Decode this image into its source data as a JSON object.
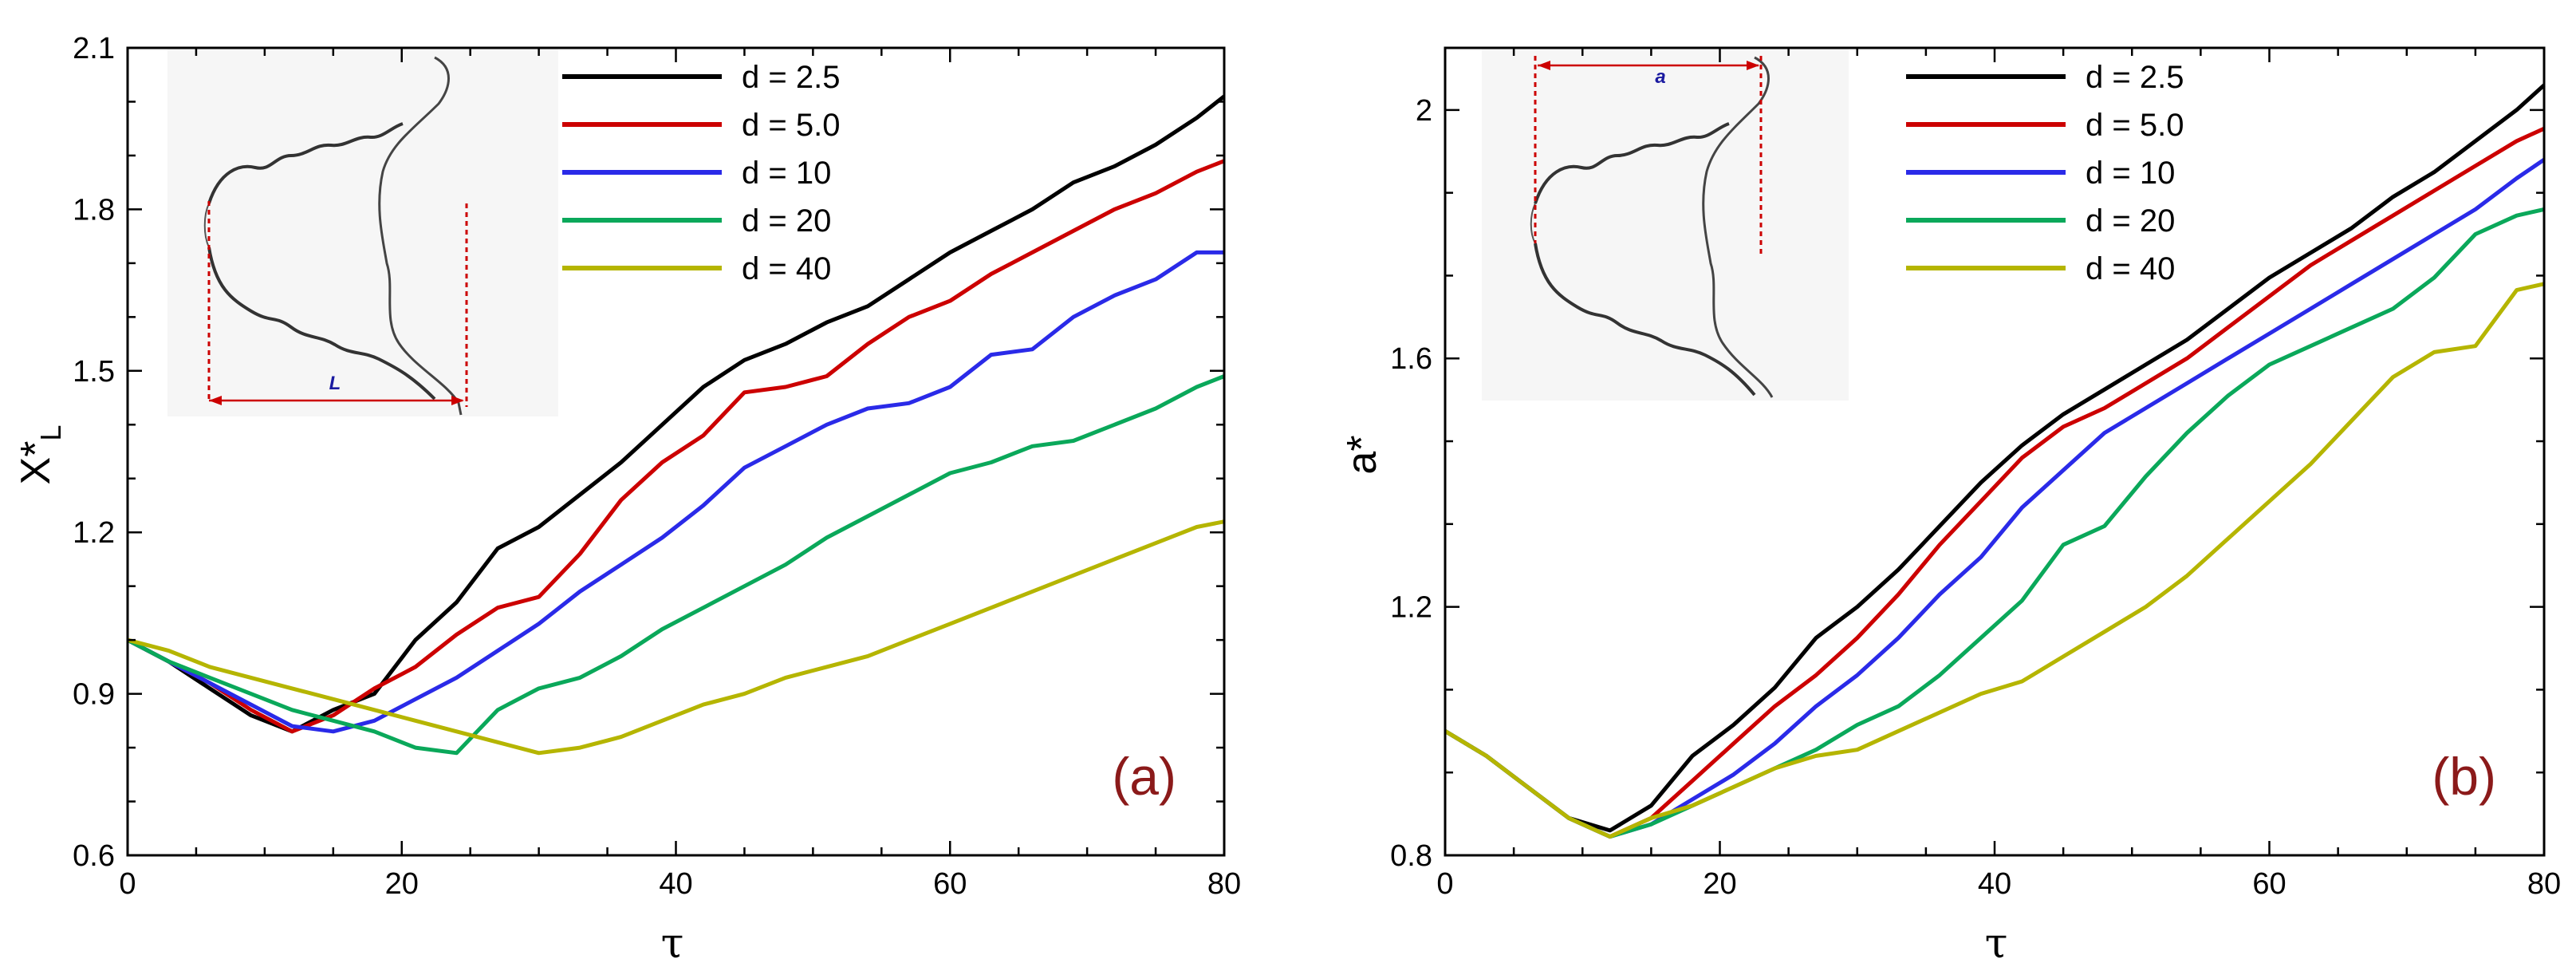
{
  "colors": {
    "d_2_5": "#000000",
    "d_5_0": "#cc0000",
    "d_10": "#2a2ae8",
    "d_20": "#0aa85a",
    "d_40": "#b5b500",
    "panel_label": "#8b1a1a",
    "inset_marker": "#cc0000"
  },
  "chart_data": [
    {
      "type": "line",
      "panel_label": "(a)",
      "xlabel": "τ",
      "ylabel": "X*L",
      "ylabel_main": "X*",
      "ylabel_sub": "L",
      "xlim": [
        0,
        80
      ],
      "ylim": [
        0.6,
        2.1
      ],
      "xticks": [
        0,
        20,
        40,
        60,
        80
      ],
      "xtick_labels": [
        "0",
        "20",
        "40",
        "60",
        "80"
      ],
      "yticks": [
        0.6,
        0.9,
        1.2,
        1.5,
        1.8,
        2.1
      ],
      "ytick_labels": [
        "0.6",
        "0.9",
        "1.2",
        "1.5",
        "1.8",
        "2.1"
      ],
      "legend_position": "top-right",
      "inset_annotation": "L",
      "series": [
        {
          "name": "d = 2.5",
          "color_key": "d_2_5",
          "x": [
            0,
            3,
            6,
            9,
            12,
            15,
            18,
            21,
            24,
            27,
            30,
            33,
            36,
            39,
            42,
            45,
            48,
            51,
            54,
            57,
            60,
            63,
            66,
            69,
            72,
            75,
            78,
            80
          ],
          "y": [
            1.0,
            0.96,
            0.91,
            0.86,
            0.83,
            0.87,
            0.9,
            1.0,
            1.07,
            1.17,
            1.21,
            1.27,
            1.33,
            1.4,
            1.47,
            1.52,
            1.55,
            1.59,
            1.62,
            1.67,
            1.72,
            1.76,
            1.8,
            1.85,
            1.88,
            1.92,
            1.97,
            2.01
          ]
        },
        {
          "name": "d = 5.0",
          "color_key": "d_5_0",
          "x": [
            0,
            3,
            6,
            9,
            12,
            15,
            18,
            21,
            24,
            27,
            30,
            33,
            36,
            39,
            42,
            45,
            48,
            51,
            54,
            57,
            60,
            63,
            66,
            69,
            72,
            75,
            78,
            80
          ],
          "y": [
            1.0,
            0.96,
            0.92,
            0.87,
            0.83,
            0.86,
            0.91,
            0.95,
            1.01,
            1.06,
            1.08,
            1.16,
            1.26,
            1.33,
            1.38,
            1.46,
            1.47,
            1.49,
            1.55,
            1.6,
            1.63,
            1.68,
            1.72,
            1.76,
            1.8,
            1.83,
            1.87,
            1.89
          ]
        },
        {
          "name": "d = 10",
          "color_key": "d_10",
          "x": [
            0,
            3,
            6,
            9,
            12,
            15,
            18,
            21,
            24,
            27,
            30,
            33,
            36,
            39,
            42,
            45,
            48,
            51,
            54,
            57,
            60,
            63,
            66,
            69,
            72,
            75,
            78,
            80
          ],
          "y": [
            1.0,
            0.96,
            0.92,
            0.88,
            0.84,
            0.83,
            0.85,
            0.89,
            0.93,
            0.98,
            1.03,
            1.09,
            1.14,
            1.19,
            1.25,
            1.32,
            1.36,
            1.4,
            1.43,
            1.44,
            1.47,
            1.53,
            1.54,
            1.6,
            1.64,
            1.67,
            1.72,
            1.72
          ]
        },
        {
          "name": "d = 20",
          "color_key": "d_20",
          "x": [
            0,
            3,
            6,
            9,
            12,
            15,
            18,
            21,
            24,
            27,
            30,
            33,
            36,
            39,
            42,
            45,
            48,
            51,
            54,
            57,
            60,
            63,
            66,
            69,
            72,
            75,
            78,
            80
          ],
          "y": [
            1.0,
            0.96,
            0.93,
            0.9,
            0.87,
            0.85,
            0.83,
            0.8,
            0.79,
            0.87,
            0.91,
            0.93,
            0.97,
            1.02,
            1.06,
            1.1,
            1.14,
            1.19,
            1.23,
            1.27,
            1.31,
            1.33,
            1.36,
            1.37,
            1.4,
            1.43,
            1.47,
            1.49
          ]
        },
        {
          "name": "d = 40",
          "color_key": "d_40",
          "x": [
            0,
            3,
            6,
            9,
            12,
            15,
            18,
            21,
            24,
            27,
            30,
            33,
            36,
            39,
            42,
            45,
            48,
            51,
            54,
            57,
            60,
            63,
            66,
            69,
            72,
            75,
            78,
            80
          ],
          "y": [
            1.0,
            0.98,
            0.95,
            0.93,
            0.91,
            0.89,
            0.87,
            0.85,
            0.83,
            0.81,
            0.79,
            0.8,
            0.82,
            0.85,
            0.88,
            0.9,
            0.93,
            0.95,
            0.97,
            1.0,
            1.03,
            1.06,
            1.09,
            1.12,
            1.15,
            1.18,
            1.21,
            1.22
          ]
        }
      ]
    },
    {
      "type": "line",
      "panel_label": "(b)",
      "xlabel": "τ",
      "ylabel": "a*",
      "xlim": [
        0,
        80
      ],
      "ylim": [
        0.8,
        2.1
      ],
      "xticks": [
        0,
        20,
        40,
        60,
        80
      ],
      "xtick_labels": [
        "0",
        "20",
        "40",
        "60",
        "80"
      ],
      "yticks": [
        0.8,
        1.2,
        1.6,
        2.0
      ],
      "ytick_labels": [
        "0.8",
        "1.2",
        "1.6",
        "2"
      ],
      "legend_position": "top-right",
      "inset_annotation": "a",
      "series": [
        {
          "name": "d = 2.5",
          "color_key": "d_2_5",
          "x": [
            0,
            3,
            6,
            9,
            12,
            15,
            18,
            21,
            24,
            27,
            30,
            33,
            36,
            39,
            42,
            45,
            48,
            51,
            54,
            57,
            60,
            63,
            66,
            69,
            72,
            75,
            78,
            80
          ],
          "y": [
            1.0,
            0.96,
            0.91,
            0.86,
            0.84,
            0.88,
            0.96,
            1.01,
            1.07,
            1.15,
            1.2,
            1.26,
            1.33,
            1.4,
            1.46,
            1.51,
            1.55,
            1.59,
            1.63,
            1.68,
            1.73,
            1.77,
            1.81,
            1.86,
            1.9,
            1.95,
            2.0,
            2.04
          ]
        },
        {
          "name": "d = 5.0",
          "color_key": "d_5_0",
          "x": [
            0,
            3,
            6,
            9,
            12,
            15,
            18,
            21,
            24,
            27,
            30,
            33,
            36,
            39,
            42,
            45,
            48,
            51,
            54,
            57,
            60,
            63,
            66,
            69,
            72,
            75,
            78,
            80
          ],
          "y": [
            1.0,
            0.96,
            0.91,
            0.86,
            0.83,
            0.86,
            0.92,
            0.98,
            1.04,
            1.09,
            1.15,
            1.22,
            1.3,
            1.37,
            1.44,
            1.49,
            1.52,
            1.56,
            1.6,
            1.65,
            1.7,
            1.75,
            1.79,
            1.83,
            1.87,
            1.91,
            1.95,
            1.97
          ]
        },
        {
          "name": "d = 10",
          "color_key": "d_10",
          "x": [
            0,
            3,
            6,
            9,
            12,
            15,
            18,
            21,
            24,
            27,
            30,
            33,
            36,
            39,
            42,
            45,
            48,
            51,
            54,
            57,
            60,
            63,
            66,
            69,
            72,
            75,
            78,
            80
          ],
          "y": [
            1.0,
            0.96,
            0.91,
            0.86,
            0.83,
            0.85,
            0.89,
            0.93,
            0.98,
            1.04,
            1.09,
            1.15,
            1.22,
            1.28,
            1.36,
            1.42,
            1.48,
            1.52,
            1.56,
            1.6,
            1.64,
            1.68,
            1.72,
            1.76,
            1.8,
            1.84,
            1.89,
            1.92
          ]
        },
        {
          "name": "d = 20",
          "color_key": "d_20",
          "x": [
            0,
            3,
            6,
            9,
            12,
            15,
            18,
            21,
            24,
            27,
            30,
            33,
            36,
            39,
            42,
            45,
            48,
            51,
            54,
            57,
            60,
            63,
            66,
            69,
            72,
            75,
            78,
            80
          ],
          "y": [
            1.0,
            0.96,
            0.91,
            0.86,
            0.83,
            0.85,
            0.88,
            0.91,
            0.94,
            0.97,
            1.01,
            1.04,
            1.09,
            1.15,
            1.21,
            1.3,
            1.33,
            1.41,
            1.48,
            1.54,
            1.59,
            1.62,
            1.65,
            1.68,
            1.73,
            1.8,
            1.83,
            1.84
          ]
        },
        {
          "name": "d = 40",
          "color_key": "d_40",
          "x": [
            0,
            3,
            6,
            9,
            12,
            15,
            18,
            21,
            24,
            27,
            30,
            33,
            36,
            39,
            42,
            45,
            48,
            51,
            54,
            57,
            60,
            63,
            66,
            69,
            72,
            75,
            78,
            80
          ],
          "y": [
            1.0,
            0.96,
            0.91,
            0.86,
            0.83,
            0.86,
            0.88,
            0.91,
            0.94,
            0.96,
            0.97,
            1.0,
            1.03,
            1.06,
            1.08,
            1.12,
            1.16,
            1.2,
            1.25,
            1.31,
            1.37,
            1.43,
            1.5,
            1.57,
            1.61,
            1.62,
            1.71,
            1.72
          ]
        }
      ]
    }
  ]
}
